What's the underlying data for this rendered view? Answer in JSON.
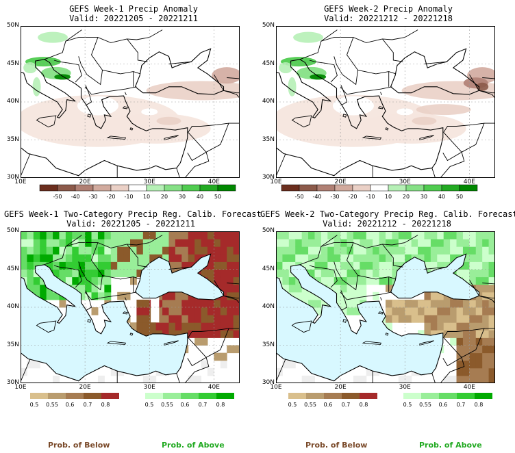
{
  "colors": {
    "below": [
      "#d9bf8c",
      "#b99c6e",
      "#a67c52",
      "#8b5a2b",
      "#a52a2a"
    ],
    "above": [
      "#ccffcc",
      "#99ee99",
      "#66dd66",
      "#33cc33",
      "#00aa00"
    ],
    "anom_neg": [
      "#6b2e1e",
      "#8c5a4a",
      "#b08074",
      "#d1aa9e",
      "#ead0c6",
      "#f6e6de"
    ],
    "anom_pos": [
      "#e8fae8",
      "#b6f0b6",
      "#86e086",
      "#50cc50",
      "#22aa22",
      "#008800"
    ],
    "ocean": "#d8f8ff",
    "land": "#ffffff",
    "nodata": "#eeeeee"
  },
  "panels": [
    {
      "title": "GEFS Week-1 Precip Anomaly",
      "valid": "Valid: 20221205 - 20221211"
    },
    {
      "title": "GEFS Week-2 Precip Anomaly",
      "valid": "Valid: 20221212 - 20221218"
    },
    {
      "title": "GEFS Week-1 Two-Category Precip Reg. Calib. Forecast",
      "valid": "Valid: 20221205 - 20221211"
    },
    {
      "title": "GEFS Week-2 Two-Category Precip Reg. Calib. Forecast",
      "valid": "Valid: 20221212 - 20221218"
    }
  ],
  "lat_labels": [
    "50N",
    "45N",
    "40N",
    "35N",
    "30N"
  ],
  "lon_labels": [
    "10E",
    "20E",
    "30E",
    "40E"
  ],
  "anomaly_colorbar_labels": [
    "-50",
    "-40",
    "-30",
    "-20",
    "-10",
    "10",
    "20",
    "30",
    "40",
    "50"
  ],
  "prob_colorbar_labels": [
    "0.5",
    "0.55",
    "0.6",
    "0.7",
    "0.8"
  ],
  "footer": {
    "below": "Prob. of Below",
    "above": "Prob. of Above"
  }
}
